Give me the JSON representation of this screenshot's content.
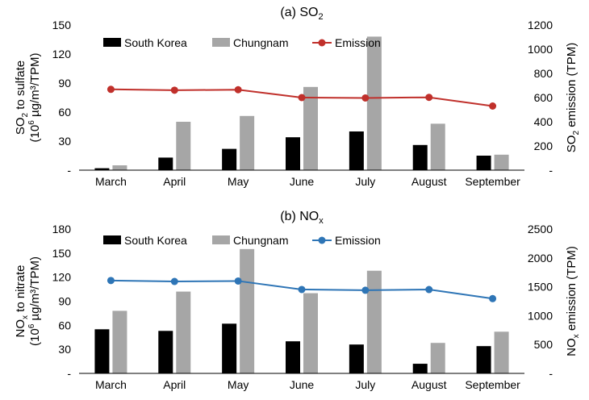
{
  "chart_data": [
    {
      "type": "bar",
      "title": "(a) SO",
      "title_sub": "2",
      "categories": [
        "March",
        "April",
        "May",
        "June",
        "July",
        "August",
        "September"
      ],
      "ylabel_line1_pre": "SO",
      "ylabel_line1_sub": "2",
      "ylabel_line1_post": " to sulfate",
      "ylabel_line2_pre": "(10",
      "ylabel_line2_sup": "6",
      "ylabel_line2_post": " µg/m³/TPM)",
      "y2label_pre": "SO",
      "y2label_sub": "2",
      "y2label_post": " emission (TPM)",
      "ylim": [
        0,
        150
      ],
      "y_ticks": [
        "-",
        "30",
        "60",
        "90",
        "120",
        "150"
      ],
      "y2lim": [
        0,
        1200
      ],
      "y2_ticks": [
        "-",
        "200",
        "400",
        "600",
        "800",
        "1000",
        "1200"
      ],
      "legend_position": "top",
      "series": [
        {
          "name": "South Korea",
          "kind": "bar",
          "color": "#000000",
          "values": [
            2,
            13,
            22,
            34,
            40,
            26,
            15
          ]
        },
        {
          "name": "Chungnam",
          "kind": "bar",
          "color": "#a6a6a6",
          "values": [
            5,
            50,
            56,
            86,
            138,
            48,
            16
          ]
        },
        {
          "name": "Emission",
          "kind": "line",
          "axis": "right",
          "color": "#c0302b",
          "values": [
            668,
            661,
            665,
            600,
            597,
            602,
            530
          ]
        }
      ]
    },
    {
      "type": "bar",
      "title": "(b) NO",
      "title_sub": "x",
      "categories": [
        "March",
        "April",
        "May",
        "June",
        "July",
        "August",
        "September"
      ],
      "ylabel_line1_pre": "NO",
      "ylabel_line1_sub": "x",
      "ylabel_line1_post": " to nitrate",
      "ylabel_line2_pre": "(10",
      "ylabel_line2_sup": "6",
      "ylabel_line2_post": " µg/m³/TPM)",
      "y2label_pre": "NO",
      "y2label_sub": "x",
      "y2label_post": " emission (TPM)",
      "ylim": [
        0,
        180
      ],
      "y_ticks": [
        "-",
        "30",
        "60",
        "90",
        "120",
        "150",
        "180"
      ],
      "y2lim": [
        0,
        2500
      ],
      "y2_ticks": [
        "-",
        "500",
        "1000",
        "1500",
        "2000",
        "2500"
      ],
      "legend_position": "top",
      "series": [
        {
          "name": "South Korea",
          "kind": "bar",
          "color": "#000000",
          "values": [
            55,
            53,
            62,
            40,
            36,
            12,
            34
          ]
        },
        {
          "name": "Chungnam",
          "kind": "bar",
          "color": "#a6a6a6",
          "values": [
            78,
            102,
            155,
            100,
            128,
            38,
            52
          ]
        },
        {
          "name": "Emission",
          "kind": "line",
          "axis": "right",
          "color": "#2e75b6",
          "values": [
            1608,
            1592,
            1600,
            1453,
            1440,
            1452,
            1295
          ]
        }
      ]
    }
  ]
}
